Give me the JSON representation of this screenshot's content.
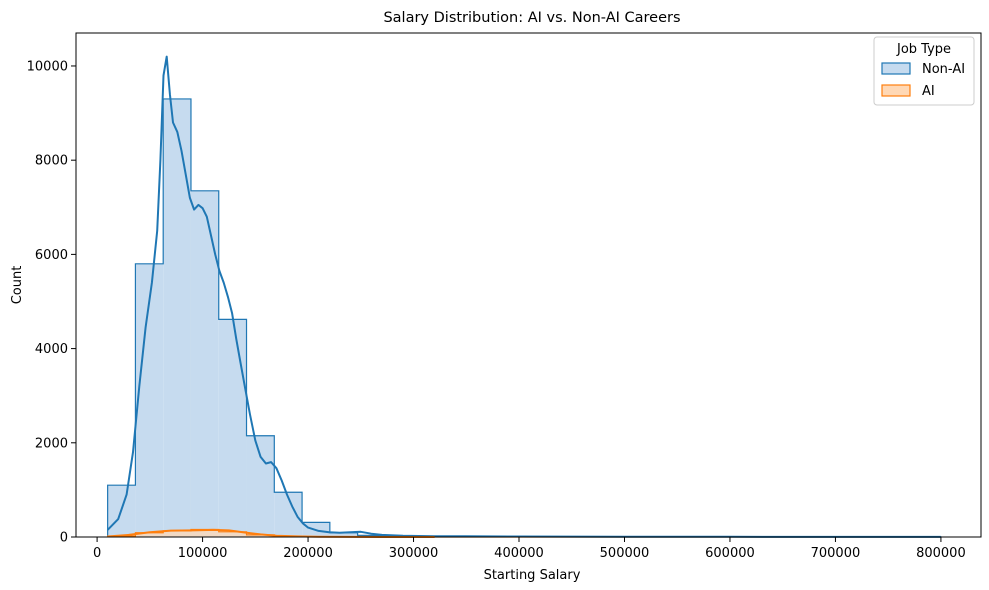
{
  "chart_data": {
    "type": "histogram",
    "title": "Salary Distribution: AI vs. Non-AI Careers",
    "xlabel": "Starting Salary",
    "ylabel": "Count",
    "xlim": [
      -20000,
      838000
    ],
    "ylim": [
      0,
      10700
    ],
    "xticks": [
      0,
      100000,
      200000,
      300000,
      400000,
      500000,
      600000,
      700000,
      800000
    ],
    "xtick_labels": [
      "0",
      "100000",
      "200000",
      "300000",
      "400000",
      "500000",
      "600000",
      "700000",
      "800000"
    ],
    "yticks": [
      0,
      2000,
      4000,
      6000,
      8000,
      10000
    ],
    "ytick_labels": [
      "0",
      "2000",
      "4000",
      "6000",
      "8000",
      "10000"
    ],
    "bin_start": 10000,
    "bin_width": 26333,
    "num_bins": 30,
    "legend": {
      "title": "Job Type",
      "position": "top-right",
      "entries": [
        "Non-AI",
        "AI"
      ]
    },
    "series": [
      {
        "name": "Non-AI",
        "color": "#1f77b4",
        "fill": "#c6dbef",
        "counts": [
          1100,
          5800,
          9300,
          7350,
          4620,
          2150,
          950,
          310,
          90,
          35,
          22,
          16,
          13,
          11,
          9,
          8,
          7,
          6,
          5,
          5,
          4,
          4,
          3,
          3,
          3,
          2,
          2,
          2,
          2,
          2
        ],
        "kde": [
          [
            10000,
            150
          ],
          [
            20000,
            380
          ],
          [
            28000,
            900
          ],
          [
            34000,
            1800
          ],
          [
            40000,
            3200
          ],
          [
            46000,
            4450
          ],
          [
            52000,
            5400
          ],
          [
            57000,
            6500
          ],
          [
            60000,
            8000
          ],
          [
            63000,
            9800
          ],
          [
            66000,
            10200
          ],
          [
            69000,
            9400
          ],
          [
            72000,
            8800
          ],
          [
            76000,
            8600
          ],
          [
            80000,
            8200
          ],
          [
            84000,
            7700
          ],
          [
            88000,
            7200
          ],
          [
            92000,
            6950
          ],
          [
            96000,
            7050
          ],
          [
            100000,
            6980
          ],
          [
            104000,
            6800
          ],
          [
            108000,
            6400
          ],
          [
            112000,
            6000
          ],
          [
            116000,
            5650
          ],
          [
            120000,
            5400
          ],
          [
            124000,
            5100
          ],
          [
            128000,
            4750
          ],
          [
            132000,
            4200
          ],
          [
            136000,
            3700
          ],
          [
            140000,
            3200
          ],
          [
            145000,
            2600
          ],
          [
            150000,
            2050
          ],
          [
            155000,
            1700
          ],
          [
            160000,
            1560
          ],
          [
            165000,
            1590
          ],
          [
            170000,
            1460
          ],
          [
            175000,
            1200
          ],
          [
            180000,
            900
          ],
          [
            185000,
            650
          ],
          [
            190000,
            430
          ],
          [
            195000,
            290
          ],
          [
            200000,
            200
          ],
          [
            210000,
            130
          ],
          [
            220000,
            100
          ],
          [
            230000,
            90
          ],
          [
            240000,
            100
          ],
          [
            250000,
            110
          ],
          [
            260000,
            70
          ],
          [
            270000,
            45
          ],
          [
            290000,
            25
          ],
          [
            320000,
            18
          ],
          [
            350000,
            15
          ],
          [
            400000,
            10
          ],
          [
            450000,
            8
          ],
          [
            500000,
            7
          ],
          [
            550000,
            5
          ],
          [
            600000,
            4
          ],
          [
            650000,
            3
          ],
          [
            700000,
            3
          ],
          [
            750000,
            2
          ],
          [
            800000,
            2
          ]
        ]
      },
      {
        "name": "AI",
        "color": "#ff7f0e",
        "fill": "#ffd8b5",
        "counts": [
          20,
          90,
          130,
          160,
          110,
          45,
          12,
          4,
          2,
          1,
          1,
          0,
          0,
          0,
          0,
          0,
          0,
          0,
          0,
          0,
          0,
          0,
          0,
          0,
          0,
          0,
          0,
          0,
          0,
          0
        ],
        "kde": [
          [
            10000,
            10
          ],
          [
            30000,
            45
          ],
          [
            50000,
            100
          ],
          [
            70000,
            135
          ],
          [
            90000,
            140
          ],
          [
            110000,
            150
          ],
          [
            125000,
            140
          ],
          [
            140000,
            95
          ],
          [
            155000,
            55
          ],
          [
            170000,
            28
          ],
          [
            190000,
            12
          ],
          [
            210000,
            6
          ],
          [
            240000,
            3
          ],
          [
            280000,
            1
          ],
          [
            320000,
            0
          ]
        ]
      }
    ]
  }
}
